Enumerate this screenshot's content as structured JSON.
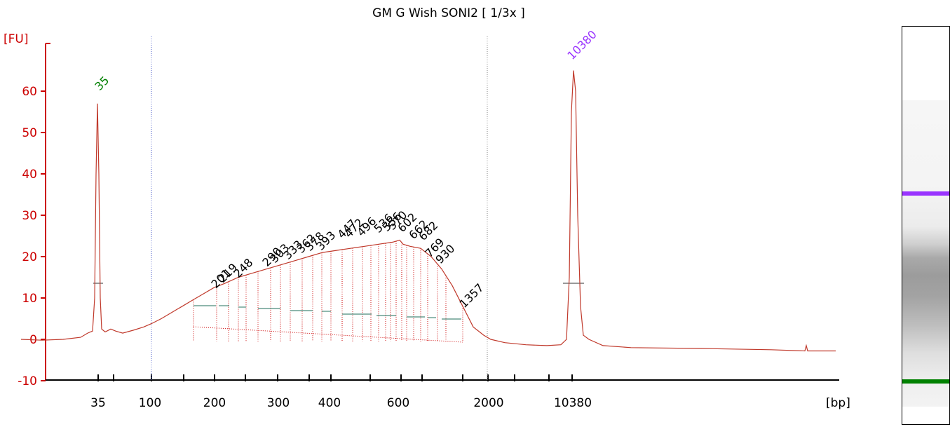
{
  "chart_data": {
    "type": "line",
    "title": "GM G Wish SONI2  [ 1/3x ]",
    "ylabel": "[FU]",
    "xlabel": "[bp]",
    "ylim": [
      -10,
      68
    ],
    "y_ticks": [
      -10,
      0,
      10,
      20,
      30,
      40,
      50,
      60
    ],
    "x_tick_labels": [
      "35",
      "100",
      "200",
      "300",
      "400",
      "600",
      "2000",
      "10380"
    ],
    "x_axis": "categorical bp ladder (non-linear migration scale)",
    "grid": false,
    "markers": [
      {
        "label": "35",
        "color": "#008000",
        "peak_fu": 57
      },
      {
        "label": "10380",
        "color": "#9933ff",
        "peak_fu": 65
      }
    ],
    "peak_labels": [
      "201",
      "219",
      "248",
      "290",
      "303",
      "333",
      "362",
      "378",
      "393",
      "447",
      "472",
      "496",
      "536",
      "556",
      "570",
      "602",
      "662",
      "682",
      "769",
      "930",
      "1357"
    ],
    "series": [
      {
        "color": "#c0392b",
        "values": [
          [
            30,
            0
          ],
          [
            60,
            -0.2
          ],
          [
            90,
            0
          ],
          [
            115,
            0.5
          ],
          [
            125,
            1.5
          ],
          [
            132,
            2
          ],
          [
            135,
            10
          ],
          [
            137,
            40
          ],
          [
            139,
            57
          ],
          [
            141,
            40
          ],
          [
            143,
            10
          ],
          [
            145,
            2.5
          ],
          [
            150,
            1.8
          ],
          [
            158,
            2.5
          ],
          [
            165,
            2
          ],
          [
            175,
            1.5
          ],
          [
            190,
            2.2
          ],
          [
            205,
            3
          ],
          [
            216,
            3.8
          ],
          [
            230,
            5
          ],
          [
            245,
            6.5
          ],
          [
            260,
            8
          ],
          [
            275,
            9.5
          ],
          [
            290,
            11
          ],
          [
            305,
            12.5
          ],
          [
            320,
            13.5
          ],
          [
            340,
            15
          ],
          [
            360,
            16
          ],
          [
            380,
            17
          ],
          [
            400,
            18
          ],
          [
            420,
            19
          ],
          [
            440,
            20
          ],
          [
            460,
            21
          ],
          [
            480,
            21.5
          ],
          [
            500,
            22
          ],
          [
            520,
            22.5
          ],
          [
            540,
            23
          ],
          [
            560,
            23.5
          ],
          [
            570,
            24
          ],
          [
            575,
            23
          ],
          [
            585,
            22.5
          ],
          [
            600,
            22
          ],
          [
            615,
            20
          ],
          [
            630,
            17
          ],
          [
            645,
            13
          ],
          [
            660,
            8
          ],
          [
            675,
            3
          ],
          [
            690,
            1
          ],
          [
            700,
            0
          ],
          [
            720,
            -0.8
          ],
          [
            750,
            -1.3
          ],
          [
            780,
            -1.5
          ],
          [
            800,
            -1.3
          ],
          [
            808,
            0
          ],
          [
            812,
            15
          ],
          [
            815,
            55
          ],
          [
            818,
            65
          ],
          [
            821,
            60
          ],
          [
            824,
            30
          ],
          [
            828,
            8
          ],
          [
            832,
            1
          ],
          [
            840,
            0
          ],
          [
            860,
            -1.5
          ],
          [
            900,
            -2
          ],
          [
            1000,
            -2.2
          ],
          [
            1100,
            -2.5
          ],
          [
            1148,
            -2.8
          ],
          [
            1150,
            -1.5
          ],
          [
            1152,
            -2.8
          ],
          [
            1192,
            -2.8
          ]
        ]
      }
    ]
  }
}
